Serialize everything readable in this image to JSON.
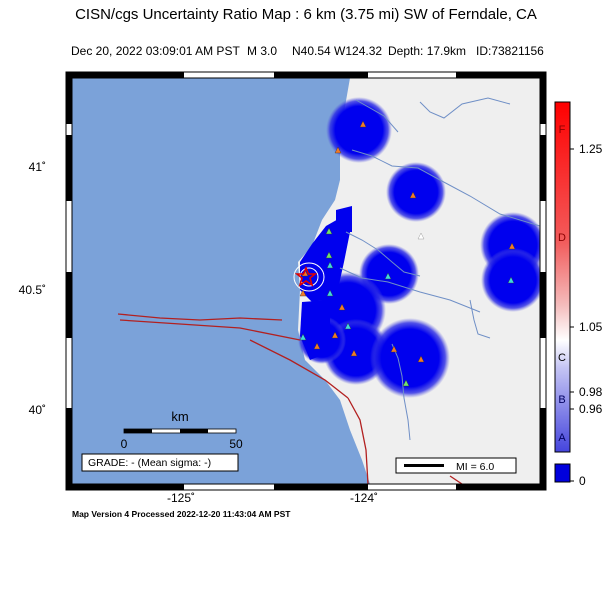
{
  "header": {
    "title": "CISN/cgs Uncertainty Ratio Map : 6 km (3.75 mi) SW of Ferndale, CA",
    "date": "Dec 20, 2022 03:09:01 AM PST",
    "magnitude": "M 3.0",
    "location": "N40.54 W124.32",
    "depth": "Depth: 17.9km",
    "event_id": "ID:73821156"
  },
  "axes": {
    "lat_labels": [
      "41˚",
      "40.5˚",
      "40˚"
    ],
    "lon_labels": [
      "-125˚",
      "-124˚"
    ]
  },
  "scale_bar": {
    "unit": "km",
    "min_label": "0",
    "max_label": "50"
  },
  "grade": {
    "text": "GRADE: - (Mean sigma: -)"
  },
  "mi_legend": {
    "text": "MI = 6.0"
  },
  "colorbar": {
    "letters": [
      "F",
      "D",
      "C",
      "B",
      "A"
    ],
    "values": [
      "1.25",
      "1.05",
      "0.98",
      "0.96",
      "0"
    ]
  },
  "footer": {
    "text": "Map Version 4 Processed 2022-12-20 11:43:04 AM PST"
  },
  "colors": {
    "ocean": "#7ba2d9",
    "land": "#efefef",
    "uncertainty_blue": "#0000ee",
    "fault": "#b22020",
    "river": "#6f8fc6",
    "epicenter_star": "#e00000"
  },
  "stations": {
    "orange_triangles": 14,
    "cyan_triangles": 8,
    "green_triangles": 3,
    "gray_triangles": 1
  }
}
